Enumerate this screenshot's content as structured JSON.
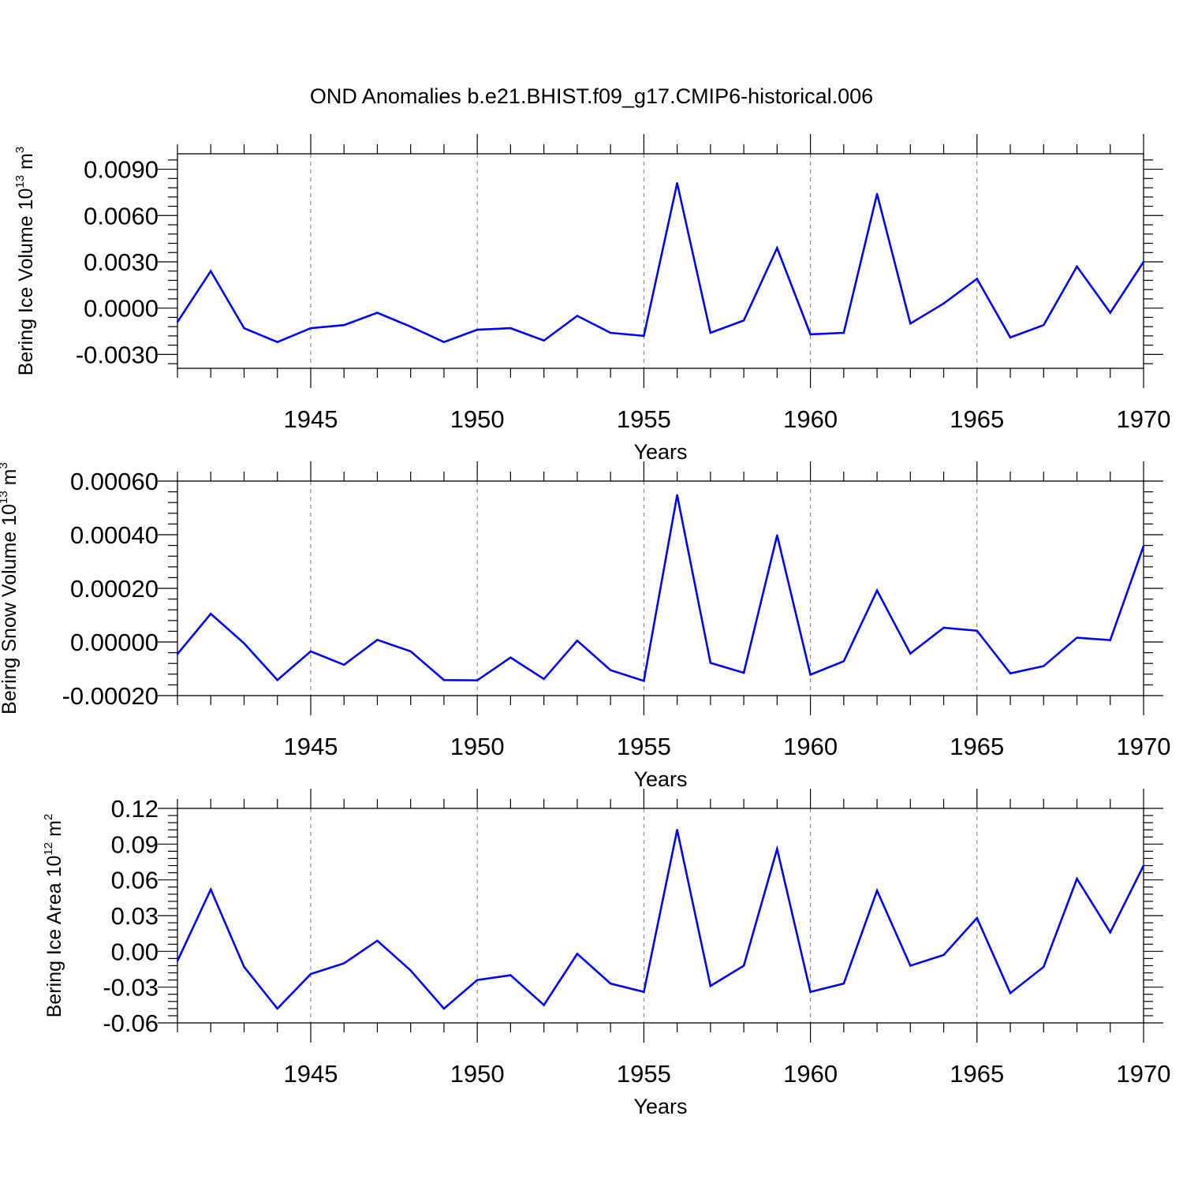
{
  "title": "OND Anomalies b.e21.BHIST.f09_g17.CMIP6-historical.006",
  "colors": {
    "series": "#0000ff",
    "axis": "#000000",
    "grid": "#777777"
  },
  "chart_data": [
    {
      "type": "line",
      "ylabel_main": "Bering Ice Volume 10",
      "ylabel_exp": "13",
      "ylabel_unit": " m",
      "ylabel_unit_exp": "3",
      "xlabel": "Years",
      "xlim": [
        1941,
        1970
      ],
      "ylim": [
        -0.0039,
        0.01
      ],
      "xticks": [
        1945,
        1950,
        1955,
        1960,
        1965,
        1970
      ],
      "yticks": [
        -0.003,
        0.0,
        0.003,
        0.006,
        0.009
      ],
      "ytick_labels": [
        "-0.0030",
        "0.0000",
        "0.0030",
        "0.0060",
        "0.0090"
      ],
      "grid": "vertical dashed at major x ticks",
      "series": [
        {
          "x": [
            1941,
            1942,
            1943,
            1944,
            1945,
            1946,
            1947,
            1948,
            1949,
            1950,
            1951,
            1952,
            1953,
            1954,
            1955,
            1956,
            1957,
            1958,
            1959,
            1960,
            1961,
            1962,
            1963,
            1964,
            1965,
            1966,
            1967,
            1968,
            1969,
            1970
          ],
          "values": [
            -0.0009,
            0.0024,
            -0.0013,
            -0.0022,
            -0.0013,
            -0.0011,
            -0.0003,
            -0.0012,
            -0.0022,
            -0.0014,
            -0.0013,
            -0.0021,
            -0.0005,
            -0.0016,
            -0.0018,
            0.0081,
            -0.0016,
            -0.0008,
            0.0039,
            -0.0017,
            -0.0016,
            0.0074,
            -0.001,
            0.0003,
            0.0019,
            -0.0019,
            -0.0011,
            0.0027,
            -0.0003,
            0.003
          ]
        }
      ]
    },
    {
      "type": "line",
      "ylabel_main": "Bering Snow Volume 10",
      "ylabel_exp": "13",
      "ylabel_unit": " m",
      "ylabel_unit_exp": "3",
      "xlabel": "Years",
      "xlim": [
        1941,
        1970
      ],
      "ylim": [
        -0.0002,
        0.0006
      ],
      "xticks": [
        1945,
        1950,
        1955,
        1960,
        1965,
        1970
      ],
      "yticks": [
        -0.0002,
        0.0,
        0.0002,
        0.0004,
        0.0006
      ],
      "ytick_labels": [
        "-0.00020",
        "0.00000",
        "0.00020",
        "0.00040",
        "0.00060"
      ],
      "grid": "vertical dashed at major x ticks",
      "series": [
        {
          "x": [
            1941,
            1942,
            1943,
            1944,
            1945,
            1946,
            1947,
            1948,
            1949,
            1950,
            1951,
            1952,
            1953,
            1954,
            1955,
            1956,
            1957,
            1958,
            1959,
            1960,
            1961,
            1962,
            1963,
            1964,
            1965,
            1966,
            1967,
            1968,
            1969,
            1970
          ],
          "values": [
            -4.5e-05,
            0.000105,
            -5e-06,
            -0.000142,
            -3.5e-05,
            -8.5e-05,
            8e-06,
            -3.5e-05,
            -0.000142,
            -0.000143,
            -5.8e-05,
            -0.000138,
            5e-06,
            -0.000105,
            -0.000145,
            0.000548,
            -7.8e-05,
            -0.000115,
            0.000398,
            -0.000122,
            -7.2e-05,
            0.000192,
            -4.3e-05,
            5.3e-05,
            4.2e-05,
            -0.000117,
            -9e-05,
            1.6e-05,
            7e-06,
            0.000358
          ]
        }
      ]
    },
    {
      "type": "line",
      "ylabel_main": "Bering Ice Area 10",
      "ylabel_exp": "12",
      "ylabel_unit": " m",
      "ylabel_unit_exp": "2",
      "xlabel": "Years",
      "xlim": [
        1941,
        1970
      ],
      "ylim": [
        -0.06,
        0.12
      ],
      "xticks": [
        1945,
        1950,
        1955,
        1960,
        1965,
        1970
      ],
      "yticks": [
        -0.06,
        -0.03,
        0.0,
        0.03,
        0.06,
        0.09,
        0.12
      ],
      "ytick_labels": [
        "-0.06",
        "-0.03",
        "0.00",
        "0.03",
        "0.06",
        "0.09",
        "0.12"
      ],
      "grid": "vertical dashed at major x ticks",
      "series": [
        {
          "x": [
            1941,
            1942,
            1943,
            1944,
            1945,
            1946,
            1947,
            1948,
            1949,
            1950,
            1951,
            1952,
            1953,
            1954,
            1955,
            1956,
            1957,
            1958,
            1959,
            1960,
            1961,
            1962,
            1963,
            1964,
            1965,
            1966,
            1967,
            1968,
            1969,
            1970
          ],
          "values": [
            -0.008,
            0.052,
            -0.013,
            -0.048,
            -0.019,
            -0.01,
            0.009,
            -0.016,
            -0.048,
            -0.024,
            -0.02,
            -0.045,
            -0.002,
            -0.027,
            -0.034,
            0.102,
            -0.029,
            -0.012,
            0.086,
            -0.034,
            -0.027,
            0.051,
            -0.012,
            -0.003,
            0.028,
            -0.035,
            -0.013,
            0.061,
            0.016,
            0.072
          ]
        }
      ]
    }
  ]
}
